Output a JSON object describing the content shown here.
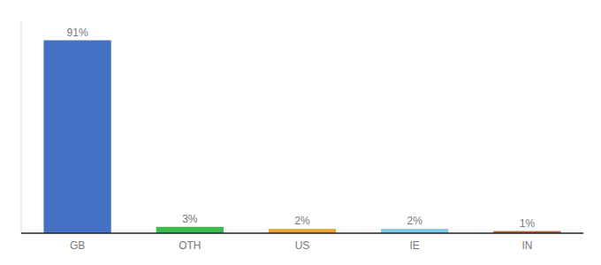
{
  "chart_data": {
    "type": "bar",
    "categories": [
      "GB",
      "OTH",
      "US",
      "IE",
      "IN"
    ],
    "values": [
      91,
      3,
      2,
      2,
      1
    ],
    "value_labels": [
      "91%",
      "3%",
      "2%",
      "2%",
      "1%"
    ],
    "colors": [
      "#4472c4",
      "#3dba4e",
      "#f0a030",
      "#7ec8e3",
      "#c0622a"
    ],
    "ylim": [
      0,
      100
    ],
    "grid": false,
    "data_labels": true,
    "tick_labels": "x"
  }
}
